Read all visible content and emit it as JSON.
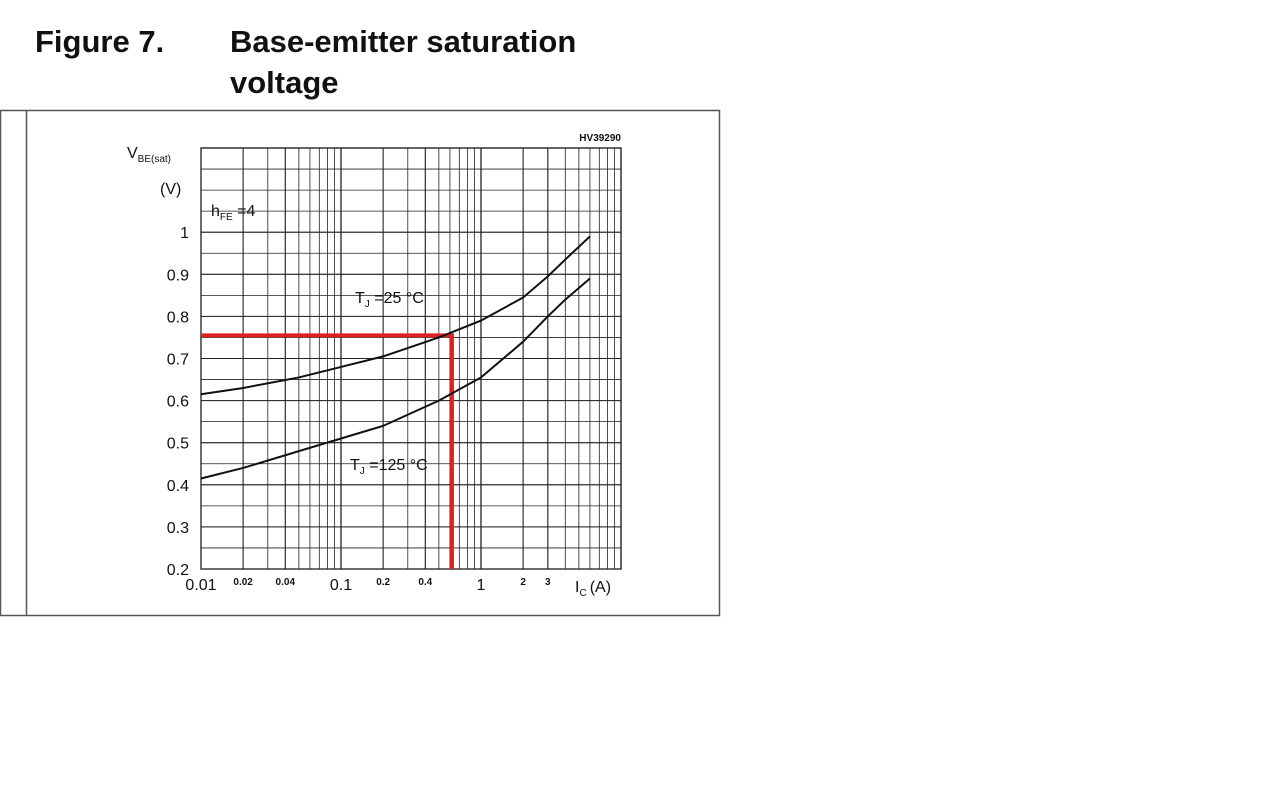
{
  "figure_label": "Figure 7.",
  "chart_data": {
    "type": "line",
    "title_lines": [
      "Base-emitter saturation",
      "voltage"
    ],
    "code": "HV39290",
    "y_label": {
      "main": "V",
      "sub": "BE(sat)",
      "unit": "(V)"
    },
    "x_label": {
      "main": "I",
      "sub": "C",
      "unit": "(A)"
    },
    "annotation": {
      "main": "h",
      "sub": "FE",
      "tail": " =4"
    },
    "x_scale": "log",
    "xlim": [
      0.01,
      10
    ],
    "xticks": [
      0.01,
      0.02,
      0.04,
      0.1,
      0.2,
      0.4,
      1,
      2,
      3
    ],
    "ylim": [
      0.2,
      1.2
    ],
    "yticks": [
      0.2,
      0.3,
      0.4,
      0.5,
      0.6,
      0.7,
      0.8,
      0.9,
      1
    ],
    "grid": true,
    "x": [
      0.01,
      0.02,
      0.05,
      0.1,
      0.2,
      0.5,
      1,
      2,
      3,
      4,
      6
    ],
    "series": [
      {
        "name": {
          "main": "T",
          "sub": "J",
          "tail": " =25 °C"
        },
        "color": "#111111",
        "values": [
          0.615,
          0.63,
          0.655,
          0.68,
          0.705,
          0.75,
          0.79,
          0.845,
          0.895,
          0.935,
          0.99
        ]
      },
      {
        "name": {
          "main": "T",
          "sub": "J",
          "tail": " =125 °C"
        },
        "color": "#111111",
        "values": [
          0.415,
          0.44,
          0.48,
          0.51,
          0.54,
          0.6,
          0.655,
          0.74,
          0.8,
          0.84,
          0.89
        ]
      }
    ],
    "marker": {
      "x": 0.62,
      "y": 0.755,
      "color": "#e02020"
    }
  }
}
